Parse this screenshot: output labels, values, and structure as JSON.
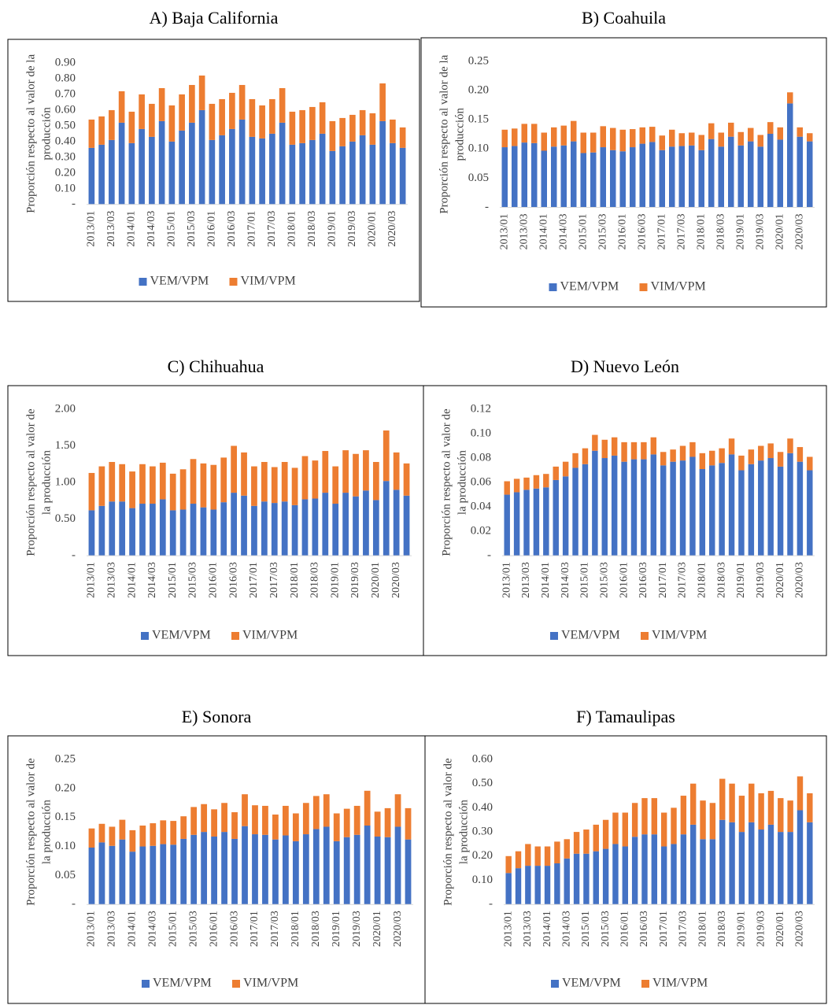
{
  "chart_data": [
    {
      "type": "bar",
      "stacked": true,
      "title": "A)  Baja California",
      "ylabel": [
        "Proporción respecto al valor de la",
        "producción"
      ],
      "categories": [
        "2013/01",
        null,
        "2013/03",
        null,
        "2014/01",
        null,
        "2014/03",
        null,
        "2015/01",
        null,
        "2015/03",
        null,
        "2016/01",
        null,
        "2016/03",
        null,
        "2017/01",
        null,
        "2017/03",
        null,
        "2018/01",
        null,
        "2018/03",
        null,
        "2019/01",
        null,
        "2019/03",
        null,
        "2020/01",
        null,
        "2020/03",
        null
      ],
      "series": [
        {
          "name": "VEM/VPM",
          "color": "#4472c4",
          "values": [
            0.36,
            0.38,
            0.41,
            0.52,
            0.39,
            0.48,
            0.43,
            0.53,
            0.4,
            0.47,
            0.52,
            0.6,
            0.41,
            0.44,
            0.48,
            0.54,
            0.43,
            0.42,
            0.45,
            0.52,
            0.38,
            0.39,
            0.41,
            0.45,
            0.34,
            0.37,
            0.4,
            0.44,
            0.38,
            0.53,
            0.39,
            0.36
          ]
        },
        {
          "name": "VIM/VPM",
          "color": "#ed7d31",
          "values": [
            0.18,
            0.18,
            0.19,
            0.2,
            0.2,
            0.22,
            0.21,
            0.21,
            0.23,
            0.23,
            0.24,
            0.22,
            0.23,
            0.23,
            0.23,
            0.22,
            0.24,
            0.21,
            0.22,
            0.22,
            0.21,
            0.21,
            0.21,
            0.2,
            0.19,
            0.18,
            0.17,
            0.16,
            0.2,
            0.24,
            0.15,
            0.13
          ]
        }
      ],
      "ylim": [
        0,
        0.9
      ],
      "yticks": [
        {
          "value": 0,
          "label": "-"
        },
        {
          "value": 0.1,
          "label": "0.10"
        },
        {
          "value": 0.2,
          "label": "0.20"
        },
        {
          "value": 0.3,
          "label": "0.30"
        },
        {
          "value": 0.4,
          "label": "0.40"
        },
        {
          "value": 0.5,
          "label": "0.50"
        },
        {
          "value": 0.6,
          "label": "0.60"
        },
        {
          "value": 0.7,
          "label": "0.70"
        },
        {
          "value": 0.8,
          "label": "0.80"
        },
        {
          "value": 0.9,
          "label": "0.90"
        }
      ],
      "grid": false,
      "legend": "bottom"
    },
    {
      "type": "bar",
      "stacked": true,
      "title": "B) Coahuila",
      "ylabel": [
        "Proporción respecto al valor de la",
        "producción"
      ],
      "categories": [
        "2013/01",
        null,
        "2013/03",
        null,
        "2014/01",
        null,
        "2014/03",
        null,
        "2015/01",
        null,
        "2015/03",
        null,
        "2016/01",
        null,
        "2016/03",
        null,
        "2017/01",
        null,
        "2017/03",
        null,
        "2018/01",
        null,
        "2018/03",
        null,
        "2019/01",
        null,
        "2019/03",
        null,
        "2020/01",
        null,
        "2020/03",
        null
      ],
      "series": [
        {
          "name": "VEM/VPM",
          "color": "#4472c4",
          "values": [
            0.103,
            0.105,
            0.111,
            0.11,
            0.097,
            0.104,
            0.106,
            0.113,
            0.093,
            0.094,
            0.103,
            0.098,
            0.096,
            0.103,
            0.109,
            0.112,
            0.098,
            0.104,
            0.105,
            0.106,
            0.098,
            0.117,
            0.104,
            0.121,
            0.106,
            0.113,
            0.104,
            0.126,
            0.116,
            0.178,
            0.121,
            0.113
          ]
        },
        {
          "name": "VIM/VPM",
          "color": "#ed7d31",
          "values": [
            0.03,
            0.03,
            0.032,
            0.033,
            0.031,
            0.033,
            0.034,
            0.035,
            0.035,
            0.034,
            0.036,
            0.038,
            0.037,
            0.031,
            0.028,
            0.026,
            0.025,
            0.029,
            0.022,
            0.022,
            0.026,
            0.027,
            0.024,
            0.024,
            0.023,
            0.023,
            0.02,
            0.02,
            0.021,
            0.019,
            0.016,
            0.014
          ]
        }
      ],
      "ylim": [
        0,
        0.25
      ],
      "yticks": [
        {
          "value": 0,
          "label": "-"
        },
        0.05,
        {
          "value": 0.1,
          "label": "0.10"
        },
        0.15,
        {
          "value": 0.2,
          "label": "0.20"
        },
        0.25
      ],
      "grid": false,
      "legend": "bottom"
    },
    {
      "type": "bar",
      "stacked": true,
      "title": "C)  Chihuahua",
      "ylabel": [
        "Proporción respecto al valor de",
        "la producción"
      ],
      "categories": [
        "2013/01",
        null,
        "2013/03",
        null,
        "2014/01",
        null,
        "2014/03",
        null,
        "2015/01",
        null,
        "2015/03",
        null,
        "2016/01",
        null,
        "2016/03",
        null,
        "2017/01",
        null,
        "2017/03",
        null,
        "2018/01",
        null,
        "2018/03",
        null,
        "2019/01",
        null,
        "2019/03",
        null,
        "2020/01",
        null,
        "2020/03",
        null
      ],
      "series": [
        {
          "name": "VEM/VPM",
          "color": "#4472c4",
          "values": [
            0.62,
            0.68,
            0.74,
            0.74,
            0.65,
            0.71,
            0.71,
            0.77,
            0.62,
            0.63,
            0.71,
            0.66,
            0.63,
            0.73,
            0.86,
            0.82,
            0.68,
            0.74,
            0.72,
            0.74,
            0.69,
            0.77,
            0.78,
            0.86,
            0.71,
            0.86,
            0.81,
            0.89,
            0.76,
            1.02,
            0.9,
            0.82
          ]
        },
        {
          "name": "VIM/VPM",
          "color": "#ed7d31",
          "values": [
            0.51,
            0.54,
            0.54,
            0.51,
            0.5,
            0.54,
            0.51,
            0.5,
            0.5,
            0.55,
            0.61,
            0.6,
            0.61,
            0.61,
            0.64,
            0.59,
            0.54,
            0.54,
            0.49,
            0.54,
            0.51,
            0.59,
            0.52,
            0.57,
            0.51,
            0.58,
            0.58,
            0.55,
            0.52,
            0.69,
            0.51,
            0.44
          ]
        }
      ],
      "ylim": [
        0,
        2
      ],
      "yticks": [
        {
          "value": 0,
          "label": "-"
        },
        {
          "value": 0.5,
          "label": "0.50"
        },
        {
          "value": 1,
          "label": "1.00"
        },
        {
          "value": 1.5,
          "label": "1.50"
        },
        {
          "value": 2,
          "label": "2.00"
        }
      ],
      "grid": false,
      "legend": "bottom"
    },
    {
      "type": "bar",
      "stacked": true,
      "title": "D) Nuevo León",
      "ylabel": [
        "Proporción respecto al valor de",
        "la producción"
      ],
      "categories": [
        "2013/01",
        null,
        "2013/03",
        null,
        "2014/01",
        null,
        "2014/03",
        null,
        "2015/01",
        null,
        "2015/03",
        null,
        "2016/01",
        null,
        "2016/03",
        null,
        "2017/01",
        null,
        "2017/03",
        null,
        "2018/01",
        null,
        "2018/03",
        null,
        "2019/01",
        null,
        "2019/03",
        null,
        "2020/01",
        null,
        "2020/03",
        null
      ],
      "series": [
        {
          "name": "VEM/VPM",
          "color": "#4472c4",
          "values": [
            0.05,
            0.052,
            0.054,
            0.055,
            0.056,
            0.062,
            0.065,
            0.072,
            0.075,
            0.086,
            0.08,
            0.082,
            0.077,
            0.079,
            0.079,
            0.083,
            0.074,
            0.077,
            0.078,
            0.081,
            0.071,
            0.074,
            0.076,
            0.083,
            0.07,
            0.075,
            0.078,
            0.08,
            0.073,
            0.084,
            0.077,
            0.07
          ]
        },
        {
          "name": "VIM/VPM",
          "color": "#ed7d31",
          "values": [
            0.011,
            0.011,
            0.01,
            0.011,
            0.011,
            0.011,
            0.012,
            0.012,
            0.013,
            0.013,
            0.015,
            0.015,
            0.016,
            0.014,
            0.014,
            0.014,
            0.011,
            0.01,
            0.012,
            0.012,
            0.013,
            0.012,
            0.012,
            0.013,
            0.012,
            0.012,
            0.012,
            0.012,
            0.012,
            0.012,
            0.012,
            0.011
          ]
        }
      ],
      "ylim": [
        0,
        0.12
      ],
      "yticks": [
        {
          "value": 0,
          "label": "-"
        },
        0.02,
        0.04,
        0.06,
        0.08,
        {
          "value": 0.1,
          "label": "0.10"
        },
        0.12
      ],
      "grid": false,
      "legend": "bottom"
    },
    {
      "type": "bar",
      "stacked": true,
      "title": "E)  Sonora",
      "ylabel": [
        "Proporción respecto al valor de",
        "la producción"
      ],
      "categories": [
        "2013/01",
        null,
        "2013/03",
        null,
        "2014/01",
        null,
        "2014/03",
        null,
        "2015/01",
        null,
        "2015/03",
        null,
        "2016/01",
        null,
        "2016/03",
        null,
        "2017/01",
        null,
        "2017/03",
        null,
        "2018/01",
        null,
        "2018/03",
        null,
        "2019/01",
        null,
        "2019/03",
        null,
        "2020/01",
        null,
        "2020/03",
        null
      ],
      "series": [
        {
          "name": "VEM/VPM",
          "color": "#4472c4",
          "values": [
            0.098,
            0.107,
            0.101,
            0.112,
            0.091,
            0.1,
            0.101,
            0.104,
            0.103,
            0.113,
            0.12,
            0.125,
            0.117,
            0.125,
            0.113,
            0.135,
            0.121,
            0.12,
            0.112,
            0.119,
            0.109,
            0.121,
            0.13,
            0.134,
            0.109,
            0.116,
            0.12,
            0.136,
            0.117,
            0.116,
            0.134,
            0.112
          ]
        },
        {
          "name": "VIM/VPM",
          "color": "#ed7d31",
          "values": [
            0.033,
            0.032,
            0.033,
            0.034,
            0.037,
            0.036,
            0.039,
            0.041,
            0.041,
            0.039,
            0.048,
            0.048,
            0.047,
            0.05,
            0.046,
            0.055,
            0.05,
            0.05,
            0.043,
            0.051,
            0.048,
            0.054,
            0.057,
            0.056,
            0.048,
            0.049,
            0.05,
            0.06,
            0.043,
            0.05,
            0.056,
            0.054
          ]
        }
      ],
      "ylim": [
        0,
        0.25
      ],
      "yticks": [
        {
          "value": 0,
          "label": "-"
        },
        0.05,
        {
          "value": 0.1,
          "label": "0.10"
        },
        0.15,
        {
          "value": 0.2,
          "label": "0.20"
        },
        0.25
      ],
      "grid": false,
      "legend": "bottom"
    },
    {
      "type": "bar",
      "stacked": true,
      "title": "F) Tamaulipas",
      "ylabel": [
        "Proporción respecto al valor de",
        "la producción"
      ],
      "categories": [
        "2013/01",
        null,
        "2013/03",
        null,
        "2014/01",
        null,
        "2014/03",
        null,
        "2015/01",
        null,
        "2015/03",
        null,
        "2016/01",
        null,
        "2016/03",
        null,
        "2017/01",
        null,
        "2017/03",
        null,
        "2018/01",
        null,
        "2018/03",
        null,
        "2019/01",
        null,
        "2019/03",
        null,
        "2020/01",
        null,
        "2020/03",
        null
      ],
      "series": [
        {
          "name": "VEM/VPM",
          "color": "#4472c4",
          "values": [
            0.13,
            0.15,
            0.16,
            0.16,
            0.16,
            0.17,
            0.19,
            0.21,
            0.21,
            0.22,
            0.23,
            0.25,
            0.24,
            0.28,
            0.29,
            0.29,
            0.24,
            0.25,
            0.29,
            0.33,
            0.27,
            0.27,
            0.35,
            0.34,
            0.3,
            0.34,
            0.31,
            0.33,
            0.3,
            0.3,
            0.39,
            0.34
          ]
        },
        {
          "name": "VIM/VPM",
          "color": "#ed7d31",
          "values": [
            0.07,
            0.07,
            0.09,
            0.08,
            0.08,
            0.09,
            0.08,
            0.09,
            0.1,
            0.11,
            0.12,
            0.13,
            0.14,
            0.14,
            0.15,
            0.15,
            0.14,
            0.15,
            0.16,
            0.17,
            0.16,
            0.15,
            0.17,
            0.16,
            0.15,
            0.16,
            0.15,
            0.14,
            0.14,
            0.13,
            0.14,
            0.12
          ]
        }
      ],
      "ylim": [
        0,
        0.6
      ],
      "yticks": [
        {
          "value": 0,
          "label": "-"
        },
        {
          "value": 0.1,
          "label": "0.10"
        },
        {
          "value": 0.2,
          "label": "0.20"
        },
        {
          "value": 0.3,
          "label": "0.30"
        },
        {
          "value": 0.4,
          "label": "0.40"
        },
        {
          "value": 0.5,
          "label": "0.50"
        },
        {
          "value": 0.6,
          "label": "0.60"
        }
      ],
      "grid": false,
      "legend": "bottom"
    }
  ]
}
